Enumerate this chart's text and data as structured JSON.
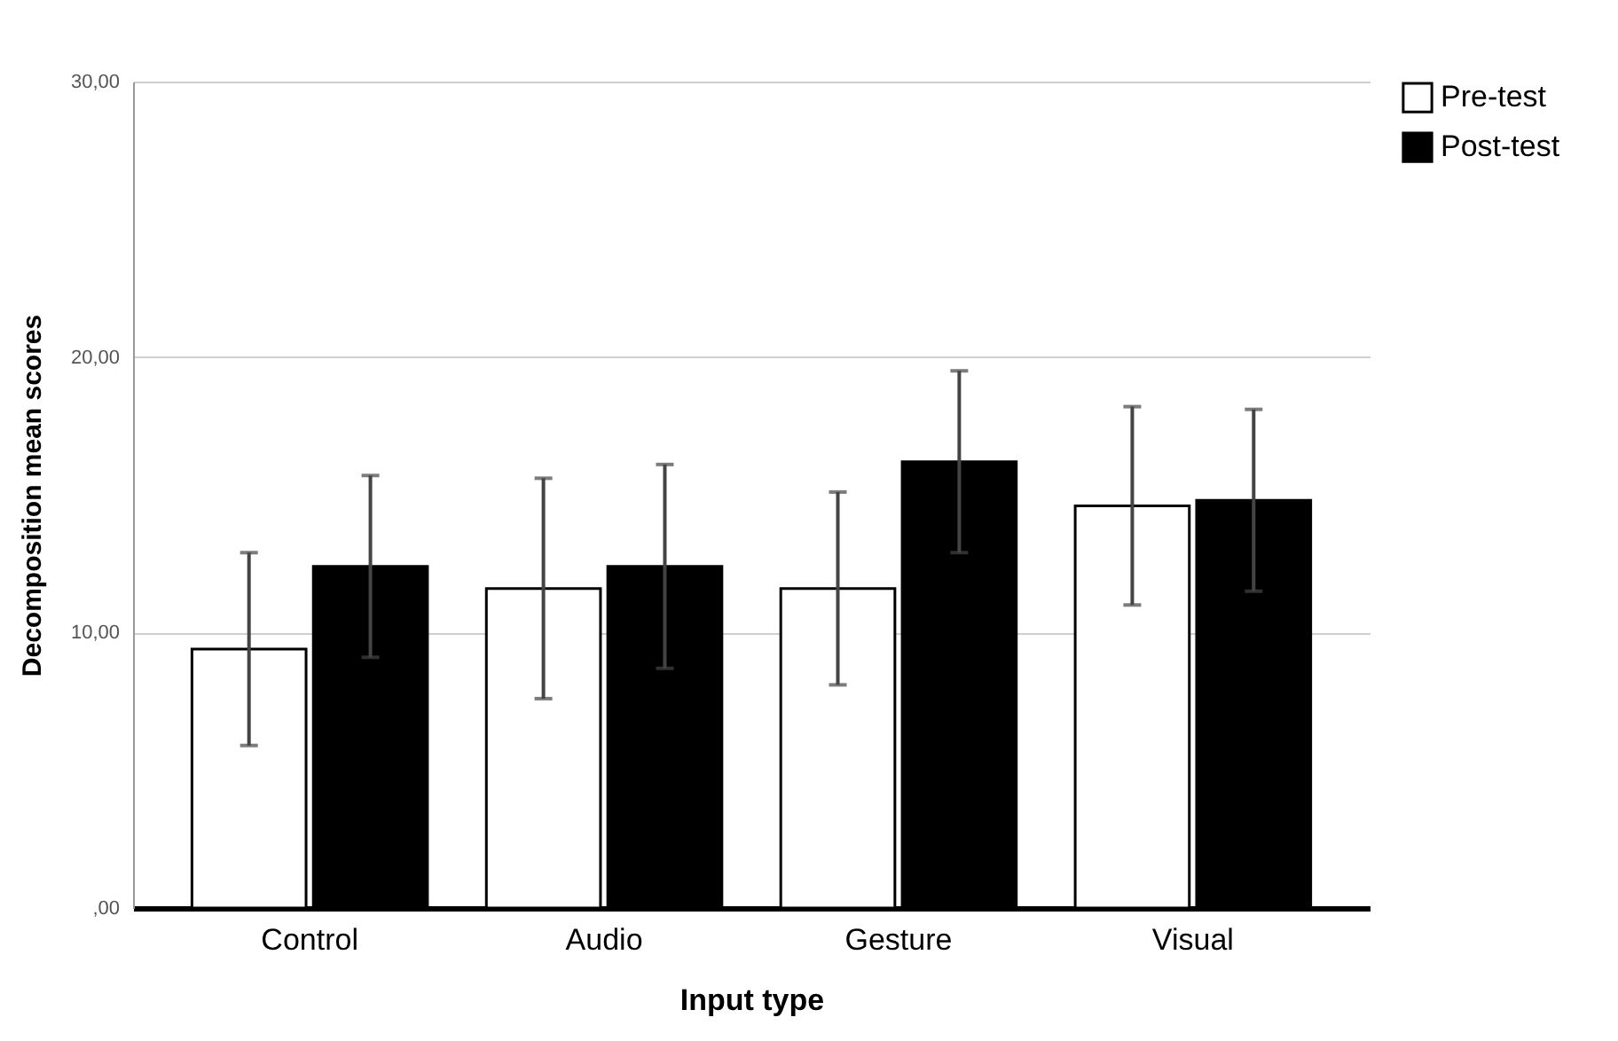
{
  "chart_data": {
    "type": "bar",
    "xlabel": "Input type",
    "ylabel": "Decomposition mean scores",
    "categories": [
      "Control",
      "Audio",
      "Gesture",
      "Visual"
    ],
    "series": [
      {
        "name": "Pre-test",
        "color": "#ffffff",
        "values": [
          9.4,
          11.6,
          11.6,
          14.6
        ],
        "errors": [
          3.5,
          4.0,
          3.5,
          3.6
        ]
      },
      {
        "name": "Post-test",
        "color": "#000000",
        "values": [
          12.4,
          12.4,
          16.2,
          14.8
        ],
        "errors": [
          3.3,
          3.7,
          3.3,
          3.3
        ]
      }
    ],
    "ylim": [
      0,
      30
    ],
    "yticks": [
      {
        "value": 0,
        "label": ",00"
      },
      {
        "value": 10,
        "label": "10,00"
      },
      {
        "value": 20,
        "label": "20,00"
      },
      {
        "value": 30,
        "label": "30,00"
      }
    ],
    "grid": "y",
    "legend": "top right"
  }
}
